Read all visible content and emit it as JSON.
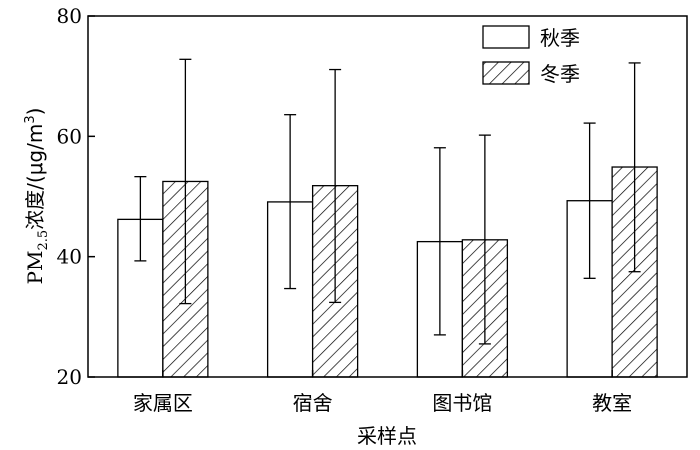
{
  "chart_data": {
    "type": "bar",
    "title": "",
    "xlabel": "采样点",
    "ylabel": {
      "prefix": "PM",
      "subscript": "2.5",
      "middle": "浓度/(μg/m",
      "superscript": "3",
      "suffix": ")"
    },
    "ylim": [
      20,
      80
    ],
    "yticks": [
      "20",
      "40",
      "60",
      "80"
    ],
    "categories": [
      "家属区",
      "宿舍",
      "图书馆",
      "教室"
    ],
    "series": [
      {
        "name": "秋季",
        "pattern": "none",
        "values": [
          46.2,
          49.1,
          42.5,
          49.3
        ],
        "err_low": [
          39.3,
          34.7,
          27.0,
          36.4
        ],
        "err_high": [
          53.3,
          63.6,
          58.1,
          62.2
        ]
      },
      {
        "name": "冬季",
        "pattern": "hatch",
        "values": [
          52.5,
          51.8,
          42.8,
          54.9
        ],
        "err_low": [
          32.2,
          32.4,
          25.5,
          37.5
        ],
        "err_high": [
          72.8,
          71.1,
          60.2,
          72.2
        ]
      }
    ],
    "legend_position": "top-right",
    "grid": false,
    "colors": {
      "stroke": "#000000",
      "fill": "#ffffff"
    }
  }
}
